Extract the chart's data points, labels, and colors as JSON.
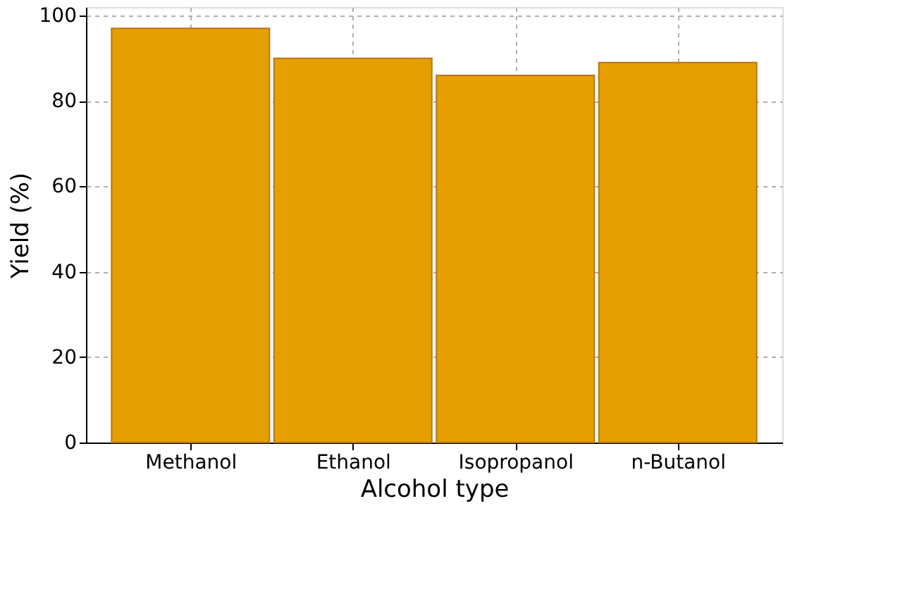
{
  "chart_data": {
    "type": "bar",
    "xlabel": "Alcohol type",
    "ylabel": "Yield (%)",
    "categories": [
      "Methanol",
      "Ethanol",
      "Isopropanol",
      "n-Butanol"
    ],
    "values": [
      97,
      90,
      86,
      89
    ],
    "color": "#e69f00",
    "ylim": [
      0,
      102
    ],
    "yticks": [
      0,
      20,
      40,
      60,
      80,
      100
    ],
    "grid": true
  }
}
